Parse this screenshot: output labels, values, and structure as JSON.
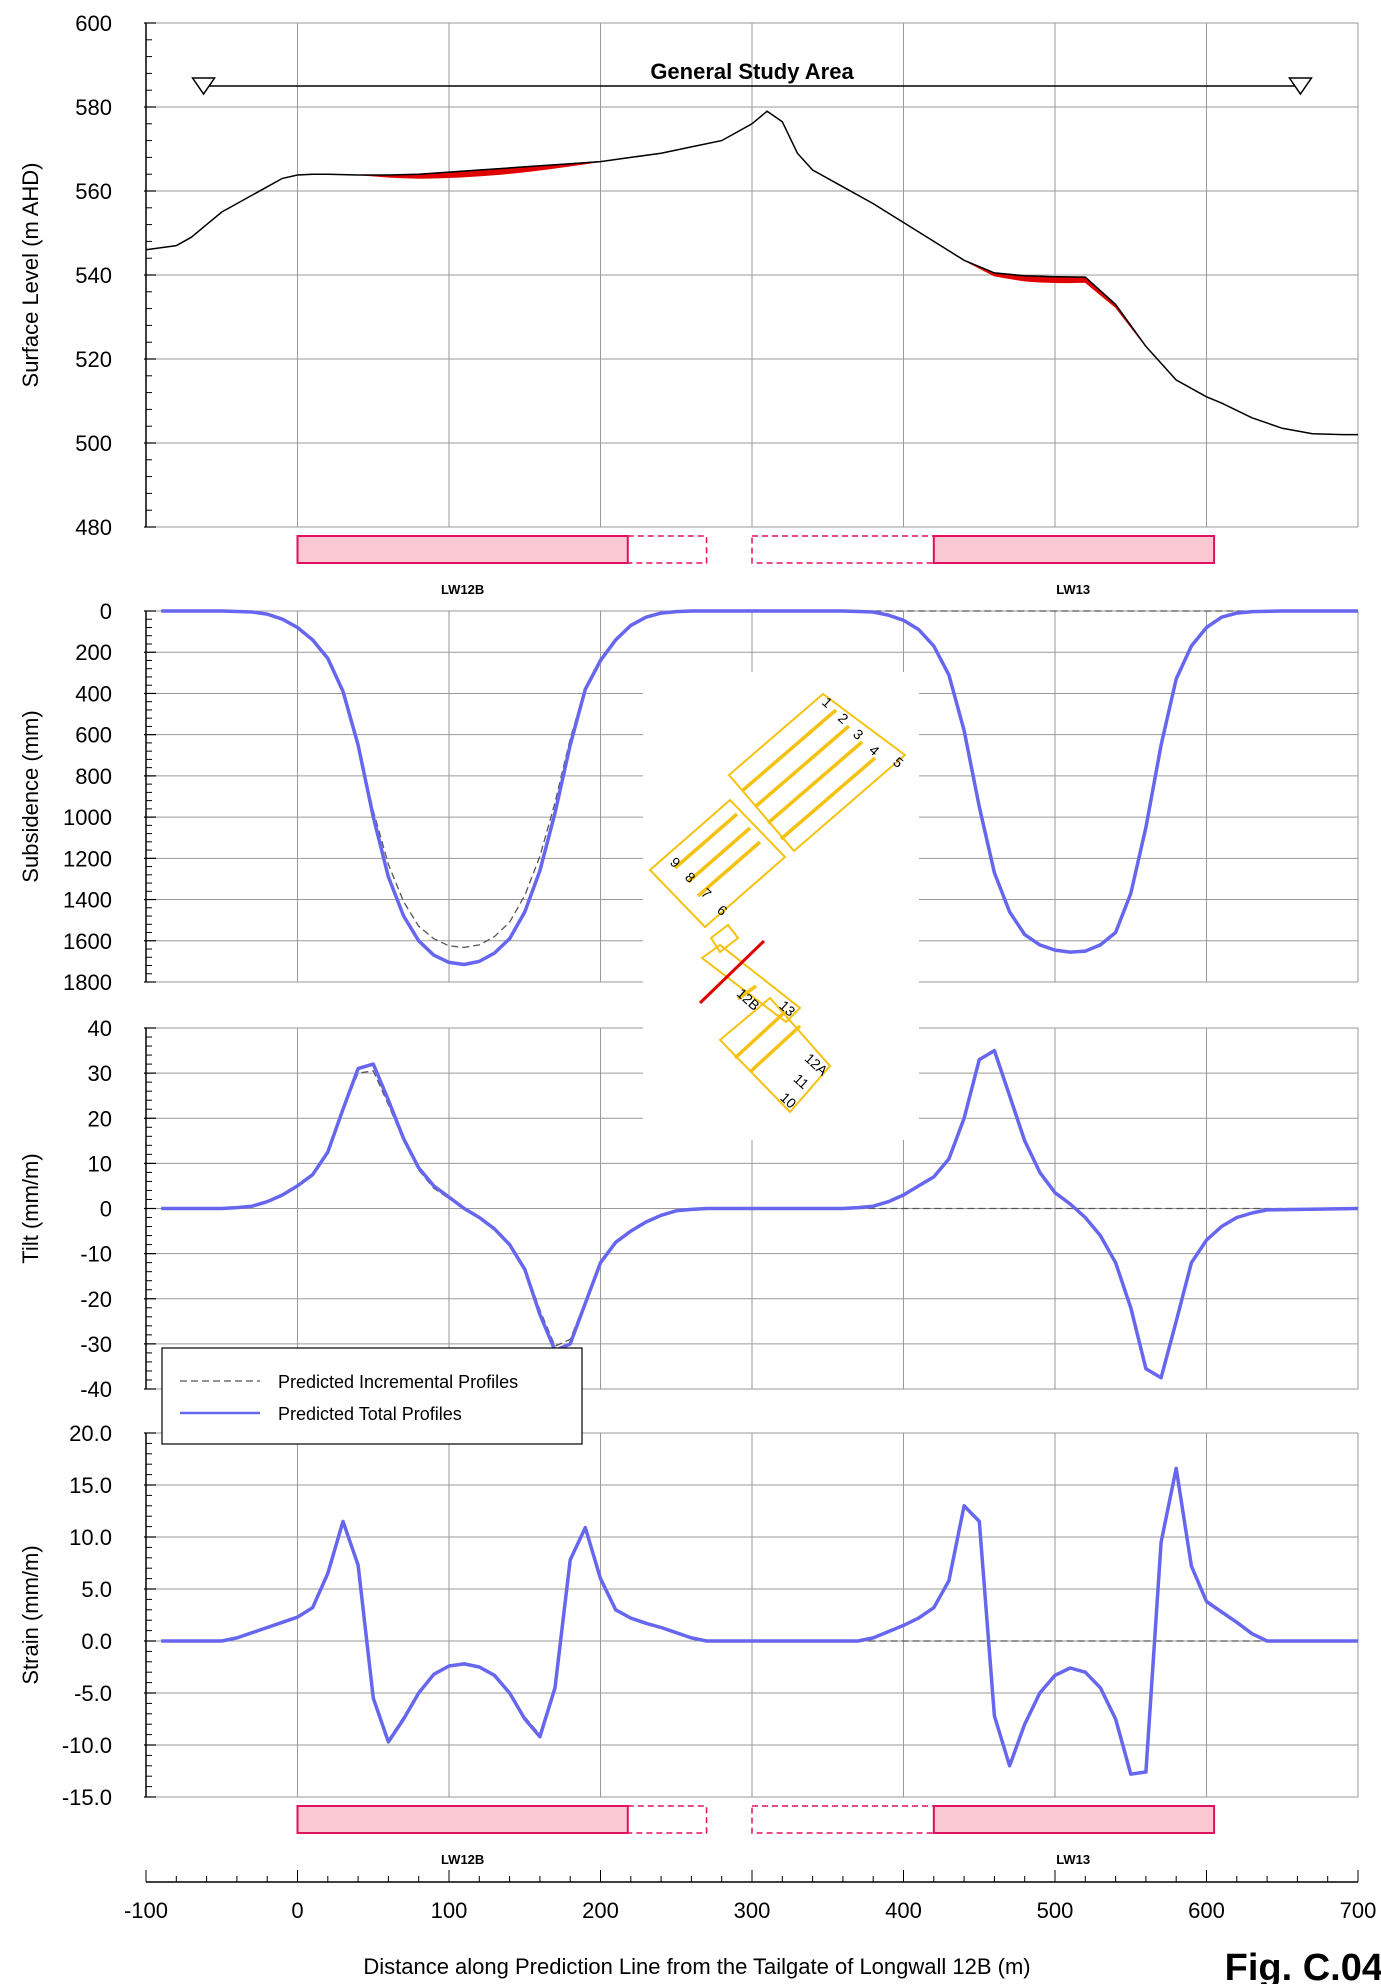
{
  "figure": {
    "fig_label": "Fig. C.04",
    "x_axis_label": "Distance along Prediction Line from the Tailgate of Longwall 12B (m)",
    "x_ticks": [
      -100,
      0,
      100,
      200,
      300,
      400,
      500,
      600,
      700
    ],
    "study_area_label": "General Study Area",
    "longwall_labels": [
      "LW12B",
      "LW13"
    ]
  },
  "colors": {
    "total": "#6666ee",
    "incremental": "#555555",
    "surface": "#000000",
    "cliff_fill": "#e00000",
    "longwall_fill": "#f9c8d2",
    "longwall_stroke": "#e0115f",
    "inset_longwall": "#f5c211",
    "inset_line": "#e00000",
    "grid": "#9a9a9a"
  },
  "legend": {
    "incremental": "Predicted Incremental Profiles",
    "total": "Predicted Total Profiles"
  },
  "inset": {
    "panel_labels": [
      "1",
      "2",
      "3",
      "4",
      "5",
      "6",
      "7",
      "8",
      "9",
      "10",
      "11",
      "12A",
      "12B",
      "13"
    ]
  },
  "chart_data": [
    {
      "type": "line",
      "ylabel": "Surface Level (m AHD)",
      "ylim": [
        480,
        600
      ],
      "y_ticks": [
        480,
        500,
        520,
        540,
        560,
        580,
        600
      ],
      "study_area": [
        -62,
        662
      ],
      "series": [
        {
          "key": "surface",
          "x": [
            -100,
            -80,
            -70,
            -60,
            -50,
            -40,
            -20,
            -10,
            0,
            10,
            20,
            40,
            60,
            80,
            100,
            120,
            140,
            160,
            180,
            200,
            220,
            240,
            260,
            280,
            300,
            310,
            320,
            330,
            340,
            360,
            380,
            400,
            420,
            440,
            460,
            480,
            500,
            520,
            540,
            560,
            580,
            600,
            610,
            630,
            650,
            670,
            690,
            700
          ],
          "y": [
            546,
            547,
            549,
            552,
            555,
            557,
            561,
            563,
            563.8,
            564,
            564,
            563.8,
            563.8,
            564,
            564.5,
            565,
            565.5,
            566,
            566.5,
            567,
            568,
            569,
            570.5,
            572,
            576,
            579,
            576.5,
            569,
            565,
            561,
            557,
            552.5,
            548,
            543.5,
            540.5,
            539.8,
            539.6,
            539.5,
            533,
            523,
            515,
            511,
            509.5,
            506,
            503.5,
            502.2,
            502,
            502
          ]
        }
      ],
      "cliff_lines": [
        {
          "x_from": 42,
          "x_to": 200
        },
        {
          "x_from": 440,
          "x_to": 560
        }
      ]
    },
    {
      "type": "line",
      "ylabel": "Subsidence (mm)",
      "ylim": [
        0,
        1800
      ],
      "y_ticks": [
        0,
        200,
        400,
        600,
        800,
        1000,
        1200,
        1400,
        1600,
        1800
      ],
      "y_inverted": true,
      "series": [
        {
          "key": "total",
          "name": "Predicted Total Profiles",
          "x": [
            -90,
            -70,
            -50,
            -30,
            -20,
            -10,
            0,
            10,
            20,
            30,
            40,
            50,
            60,
            70,
            80,
            90,
            100,
            110,
            120,
            130,
            140,
            150,
            160,
            170,
            180,
            190,
            200,
            210,
            220,
            230,
            240,
            250,
            260,
            280,
            300,
            320,
            340,
            360,
            380,
            390,
            400,
            410,
            420,
            430,
            440,
            450,
            460,
            470,
            480,
            490,
            500,
            510,
            520,
            530,
            540,
            550,
            560,
            570,
            580,
            590,
            600,
            610,
            620,
            630,
            650,
            670,
            700
          ],
          "y": [
            0,
            0,
            0,
            5,
            15,
            40,
            80,
            140,
            230,
            390,
            650,
            1000,
            1290,
            1480,
            1600,
            1670,
            1705,
            1715,
            1700,
            1660,
            1590,
            1460,
            1260,
            980,
            650,
            380,
            240,
            140,
            70,
            30,
            10,
            3,
            0,
            0,
            0,
            0,
            0,
            0,
            5,
            20,
            45,
            90,
            170,
            310,
            580,
            950,
            1270,
            1460,
            1570,
            1620,
            1645,
            1655,
            1650,
            1620,
            1560,
            1370,
            1050,
            650,
            330,
            170,
            80,
            30,
            10,
            3,
            0,
            0,
            0
          ]
        },
        {
          "key": "incremental",
          "name": "Predicted Incremental Profiles",
          "x": [
            -90,
            -50,
            -30,
            -20,
            -10,
            0,
            10,
            20,
            30,
            40,
            50,
            60,
            70,
            80,
            90,
            100,
            110,
            120,
            130,
            140,
            150,
            160,
            170,
            180,
            190,
            200,
            210,
            220,
            230,
            240,
            250,
            260,
            700
          ],
          "y": [
            0,
            0,
            5,
            15,
            40,
            80,
            140,
            230,
            390,
            650,
            970,
            1230,
            1410,
            1530,
            1590,
            1625,
            1632,
            1620,
            1580,
            1510,
            1380,
            1190,
            930,
            620,
            370,
            230,
            135,
            70,
            30,
            10,
            3,
            0,
            0
          ]
        }
      ]
    },
    {
      "type": "line",
      "ylabel": "Tilt (mm/m)",
      "ylim": [
        -40,
        40
      ],
      "y_ticks": [
        -40,
        -30,
        -20,
        -10,
        0,
        10,
        20,
        30,
        40
      ],
      "series": [
        {
          "key": "total",
          "name": "Predicted Total Profiles",
          "x": [
            -90,
            -50,
            -40,
            -30,
            -20,
            -10,
            0,
            10,
            20,
            30,
            40,
            50,
            60,
            70,
            80,
            90,
            100,
            110,
            120,
            130,
            140,
            150,
            160,
            170,
            180,
            190,
            200,
            210,
            220,
            230,
            240,
            250,
            260,
            270,
            300,
            340,
            360,
            370,
            380,
            390,
            400,
            410,
            420,
            430,
            440,
            450,
            460,
            470,
            480,
            490,
            500,
            510,
            520,
            530,
            540,
            550,
            560,
            570,
            580,
            590,
            600,
            610,
            620,
            630,
            640,
            700
          ],
          "y": [
            0,
            0,
            0.2,
            0.5,
            1.5,
            3,
            5,
            7.5,
            12.5,
            22,
            31,
            32,
            24,
            15.5,
            9,
            5,
            2.5,
            0,
            -2,
            -4.5,
            -8,
            -13.5,
            -23.5,
            -31.5,
            -30,
            -21,
            -12,
            -7.5,
            -5,
            -3,
            -1.5,
            -0.5,
            -0.2,
            0,
            0,
            0,
            0,
            0.2,
            0.5,
            1.5,
            3,
            5,
            7,
            11,
            20,
            33,
            35,
            25,
            15,
            8,
            3.5,
            1,
            -2,
            -6,
            -12,
            -22,
            -35.5,
            -37.5,
            -25,
            -12,
            -7,
            -4,
            -2,
            -1,
            -0.3,
            0
          ]
        },
        {
          "key": "incremental",
          "name": "Predicted Incremental Profiles",
          "x": [
            -90,
            -50,
            -40,
            -30,
            -20,
            -10,
            0,
            10,
            20,
            30,
            40,
            50,
            60,
            70,
            80,
            90,
            100,
            110,
            120,
            130,
            140,
            150,
            160,
            170,
            180,
            190,
            200,
            210,
            220,
            230,
            240,
            250,
            260,
            270,
            700
          ],
          "y": [
            0,
            0,
            0.2,
            0.5,
            1.5,
            3,
            5,
            7.5,
            12.5,
            22,
            30,
            30.5,
            23,
            15,
            8.5,
            4.5,
            2.2,
            0,
            -2,
            -4.5,
            -8,
            -13,
            -22.5,
            -30.5,
            -29,
            -20.5,
            -12,
            -7.5,
            -5,
            -3,
            -1.5,
            -0.5,
            -0.2,
            0,
            0
          ]
        }
      ]
    },
    {
      "type": "line",
      "ylabel": "Strain (mm/m)",
      "ylim": [
        -15,
        20
      ],
      "y_ticks": [
        -15,
        -10,
        -5,
        0,
        5,
        10,
        15,
        20
      ],
      "series": [
        {
          "key": "total",
          "name": "Predicted Total Profiles",
          "x": [
            -90,
            -50,
            -40,
            -30,
            -20,
            -10,
            0,
            10,
            20,
            30,
            40,
            50,
            60,
            70,
            80,
            90,
            100,
            110,
            120,
            130,
            140,
            150,
            160,
            170,
            180,
            190,
            200,
            210,
            220,
            230,
            240,
            250,
            260,
            270,
            370,
            380,
            390,
            400,
            410,
            420,
            430,
            440,
            450,
            460,
            470,
            480,
            490,
            500,
            510,
            520,
            530,
            540,
            550,
            560,
            570,
            580,
            590,
            600,
            610,
            620,
            630,
            640,
            700
          ],
          "y": [
            0,
            0,
            0.3,
            0.8,
            1.3,
            1.8,
            2.3,
            3.2,
            6.5,
            11.5,
            7.3,
            -5.5,
            -9.7,
            -7.5,
            -5,
            -3.2,
            -2.4,
            -2.2,
            -2.5,
            -3.3,
            -5,
            -7.5,
            -9.2,
            -4.5,
            7.8,
            10.9,
            6,
            3,
            2.2,
            1.7,
            1.3,
            0.8,
            0.3,
            0,
            0,
            0.3,
            0.9,
            1.5,
            2.2,
            3.2,
            5.8,
            13,
            11.5,
            -7.2,
            -12,
            -8,
            -5,
            -3.3,
            -2.6,
            -3,
            -4.5,
            -7.5,
            -12.8,
            -12.6,
            9.5,
            16.6,
            7.2,
            3.8,
            2.8,
            1.8,
            0.7,
            0,
            0
          ]
        },
        {
          "key": "incremental",
          "name": "Predicted Incremental Profiles",
          "x": [
            -90,
            -50,
            -40,
            -30,
            -20,
            -10,
            0,
            10,
            20,
            30,
            40,
            50,
            60,
            70,
            80,
            90,
            100,
            110,
            120,
            130,
            140,
            150,
            160,
            170,
            180,
            190,
            200,
            210,
            220,
            230,
            240,
            250,
            260,
            270,
            700
          ],
          "y": [
            0,
            0,
            0.3,
            0.8,
            1.3,
            1.8,
            2.3,
            3.2,
            6.5,
            11.5,
            7.3,
            -5.5,
            -9.5,
            -7.3,
            -5,
            -3.2,
            -2.4,
            -2.2,
            -2.5,
            -3.3,
            -5,
            -7.3,
            -9,
            -4.5,
            7.8,
            10.9,
            6,
            3,
            2.2,
            1.7,
            1.3,
            0.8,
            0.3,
            0,
            0
          ]
        }
      ]
    }
  ]
}
